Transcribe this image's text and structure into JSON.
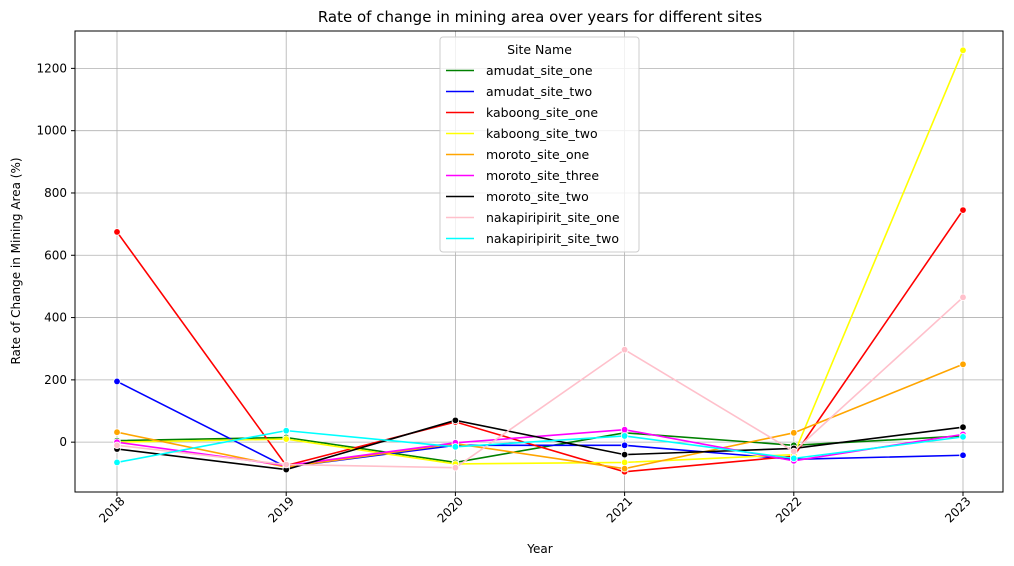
{
  "chart_data": {
    "type": "line",
    "title": "Rate of change in mining area over years for different sites",
    "xlabel": "Year",
    "ylabel": "Rate of Change in Mining Area (%)",
    "x": [
      "2018",
      "2019",
      "2020",
      "2021",
      "2022",
      "2023"
    ],
    "ylim": [
      -160,
      1320
    ],
    "yticks": [
      0,
      200,
      400,
      600,
      800,
      1000,
      1200
    ],
    "grid": true,
    "legend": {
      "title": "Site Name",
      "placement": "upper center"
    },
    "series": [
      {
        "name": "amudat_site_one",
        "color": "#008000",
        "values": [
          5,
          15,
          -65,
          30,
          -10,
          20
        ]
      },
      {
        "name": "amudat_site_two",
        "color": "#0000ff",
        "values": [
          195,
          -80,
          -10,
          -10,
          -55,
          -42
        ]
      },
      {
        "name": "kaboong_site_one",
        "color": "#ff0000",
        "values": [
          675,
          -75,
          65,
          -95,
          -45,
          745
        ]
      },
      {
        "name": "kaboong_site_two",
        "color": "#ffff00",
        "values": [
          0,
          10,
          -70,
          -65,
          -40,
          1258
        ]
      },
      {
        "name": "moroto_site_one",
        "color": "#ffa500",
        "values": [
          32,
          -80,
          -5,
          -85,
          30,
          250
        ]
      },
      {
        "name": "moroto_site_three",
        "color": "#ff00ff",
        "values": [
          0,
          -75,
          -2,
          40,
          -60,
          25
        ]
      },
      {
        "name": "moroto_site_two",
        "color": "#000000",
        "values": [
          -22,
          -88,
          70,
          -40,
          -20,
          48
        ]
      },
      {
        "name": "nakapiripirit_site_one",
        "color": "#ffc0cb",
        "values": [
          -10,
          -72,
          -82,
          297,
          -30,
          465
        ]
      },
      {
        "name": "nakapiripirit_site_two",
        "color": "#00ffff",
        "values": [
          -65,
          37,
          -15,
          20,
          -52,
          17
        ]
      }
    ]
  }
}
